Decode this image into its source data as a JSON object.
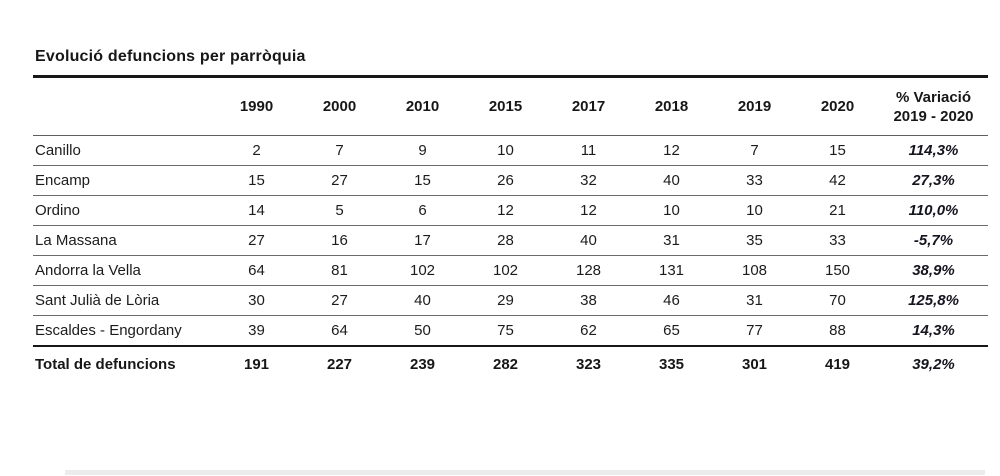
{
  "title": "Evolució defuncions per parròquia",
  "chart_data": {
    "type": "table",
    "title": "Evolució defuncions per parròquia",
    "year_columns": [
      "1990",
      "2000",
      "2010",
      "2015",
      "2017",
      "2018",
      "2019",
      "2020"
    ],
    "variation_column": [
      "% Variació",
      "2019 - 2020"
    ],
    "rows": [
      {
        "label": "Canillo",
        "values": [
          2,
          7,
          9,
          10,
          11,
          12,
          7,
          15
        ],
        "variation_pct": "114,3%"
      },
      {
        "label": "Encamp",
        "values": [
          15,
          27,
          15,
          26,
          32,
          40,
          33,
          42
        ],
        "variation_pct": "27,3%"
      },
      {
        "label": "Ordino",
        "values": [
          14,
          5,
          6,
          12,
          12,
          10,
          10,
          21
        ],
        "variation_pct": "110,0%"
      },
      {
        "label": "La Massana",
        "values": [
          27,
          16,
          17,
          28,
          40,
          31,
          35,
          33
        ],
        "variation_pct": "-5,7%"
      },
      {
        "label": "Andorra la Vella",
        "values": [
          64,
          81,
          102,
          102,
          128,
          131,
          108,
          150
        ],
        "variation_pct": "38,9%"
      },
      {
        "label": "Sant Julià de Lòria",
        "values": [
          30,
          27,
          40,
          29,
          38,
          46,
          31,
          70
        ],
        "variation_pct": "125,8%"
      },
      {
        "label": "Escaldes - Engordany",
        "values": [
          39,
          64,
          50,
          75,
          62,
          65,
          77,
          88
        ],
        "variation_pct": "14,3%"
      }
    ],
    "total": {
      "label": "Total de defuncions",
      "values": [
        191,
        227,
        239,
        282,
        323,
        335,
        301,
        419
      ],
      "variation_pct": "39,2%"
    }
  }
}
